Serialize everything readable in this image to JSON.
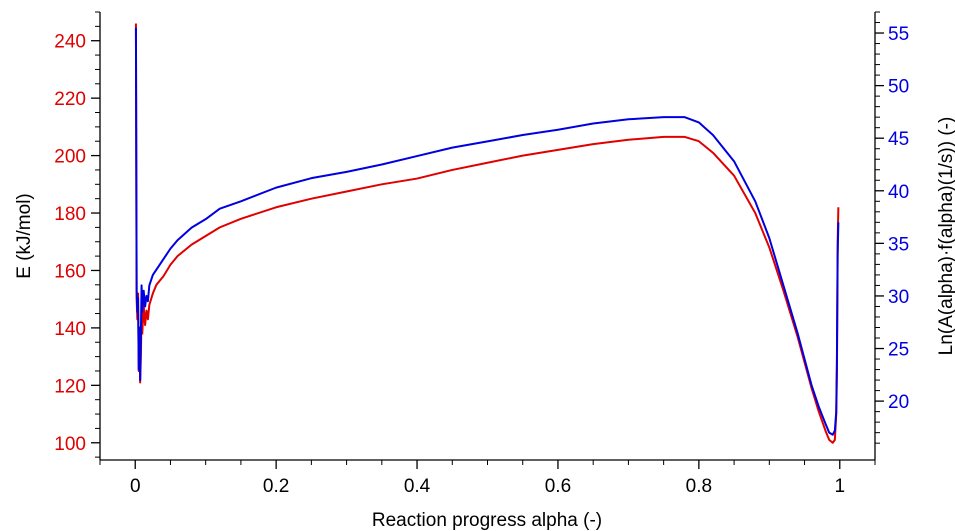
{
  "chart_data": {
    "type": "line",
    "xlabel": "Reaction progress alpha (-)",
    "ylabel_left": "E (kJ/mol)",
    "ylabel_right": "Ln(A(alpha)·f(alpha)(1/s)) (-)",
    "xlim": [
      -0.05,
      1.05
    ],
    "ylim_left": [
      94,
      250
    ],
    "ylim_right": [
      14.4,
      57.0
    ],
    "x_ticks": [
      0,
      0.2,
      0.4,
      0.6,
      0.8,
      1
    ],
    "x_tick_labels": [
      "0",
      "0.2",
      "0.4",
      "0.6",
      "0.8",
      "1"
    ],
    "y_left_ticks": [
      100,
      120,
      140,
      160,
      180,
      200,
      220,
      240
    ],
    "y_left_tick_labels": [
      "100",
      "120",
      "140",
      "160",
      "180",
      "200",
      "220",
      "240"
    ],
    "y_right_ticks": [
      20,
      25,
      30,
      35,
      40,
      45,
      50,
      55
    ],
    "y_right_tick_labels": [
      "20",
      "25",
      "30",
      "35",
      "40",
      "45",
      "50",
      "55"
    ],
    "grid": false,
    "colors": {
      "left_axis": "#e00000",
      "right_axis": "#0000e0",
      "series_E": "#e00000",
      "series_lnA": "#0000e0",
      "axes": "#000000"
    },
    "series": [
      {
        "axis": "left",
        "color": "#e00000",
        "x": [
          0.001,
          0.002,
          0.003,
          0.004,
          0.005,
          0.006,
          0.007,
          0.008,
          0.009,
          0.01,
          0.012,
          0.014,
          0.016,
          0.018,
          0.02,
          0.025,
          0.03,
          0.04,
          0.05,
          0.06,
          0.08,
          0.1,
          0.12,
          0.15,
          0.2,
          0.25,
          0.3,
          0.35,
          0.4,
          0.45,
          0.5,
          0.55,
          0.6,
          0.65,
          0.7,
          0.75,
          0.78,
          0.8,
          0.82,
          0.85,
          0.88,
          0.9,
          0.92,
          0.94,
          0.96,
          0.97,
          0.98,
          0.985,
          0.99,
          0.993,
          0.995,
          0.996,
          0.997,
          0.998
        ],
        "values": [
          246,
          150,
          143,
          152,
          125,
          138,
          121,
          130,
          145,
          138,
          148,
          141,
          146,
          143,
          148,
          152,
          155,
          158,
          162,
          165,
          169,
          172,
          175,
          178,
          182,
          185,
          187.5,
          190,
          192,
          195,
          197.5,
          200,
          202,
          204,
          205.5,
          206.5,
          206.5,
          205,
          201,
          193,
          180,
          168,
          153,
          137,
          119,
          111,
          104,
          101,
          100,
          101,
          110,
          125,
          170,
          182
        ]
      },
      {
        "axis": "right",
        "color": "#0000e0",
        "x": [
          0.001,
          0.002,
          0.003,
          0.004,
          0.005,
          0.006,
          0.007,
          0.008,
          0.009,
          0.01,
          0.012,
          0.014,
          0.016,
          0.018,
          0.02,
          0.025,
          0.03,
          0.04,
          0.05,
          0.06,
          0.08,
          0.1,
          0.12,
          0.15,
          0.2,
          0.25,
          0.3,
          0.35,
          0.4,
          0.45,
          0.5,
          0.55,
          0.6,
          0.65,
          0.7,
          0.75,
          0.78,
          0.8,
          0.82,
          0.85,
          0.88,
          0.9,
          0.92,
          0.94,
          0.96,
          0.97,
          0.98,
          0.985,
          0.99,
          0.993,
          0.995,
          0.996,
          0.997,
          0.998
        ],
        "values": [
          55.5,
          30.5,
          28.5,
          29.8,
          23.0,
          27.0,
          22.0,
          26.0,
          31.0,
          28.5,
          30.5,
          29.0,
          30.0,
          29.5,
          31.0,
          32.0,
          32.5,
          33.5,
          34.5,
          35.3,
          36.5,
          37.3,
          38.3,
          39.0,
          40.3,
          41.2,
          41.8,
          42.5,
          43.3,
          44.1,
          44.7,
          45.3,
          45.8,
          46.4,
          46.8,
          47.0,
          47.0,
          46.5,
          45.3,
          42.8,
          39.0,
          35.5,
          31.0,
          26.5,
          21.5,
          19.5,
          17.8,
          17.0,
          16.8,
          17.2,
          19.0,
          24.5,
          34.0,
          37.0
        ]
      }
    ]
  }
}
